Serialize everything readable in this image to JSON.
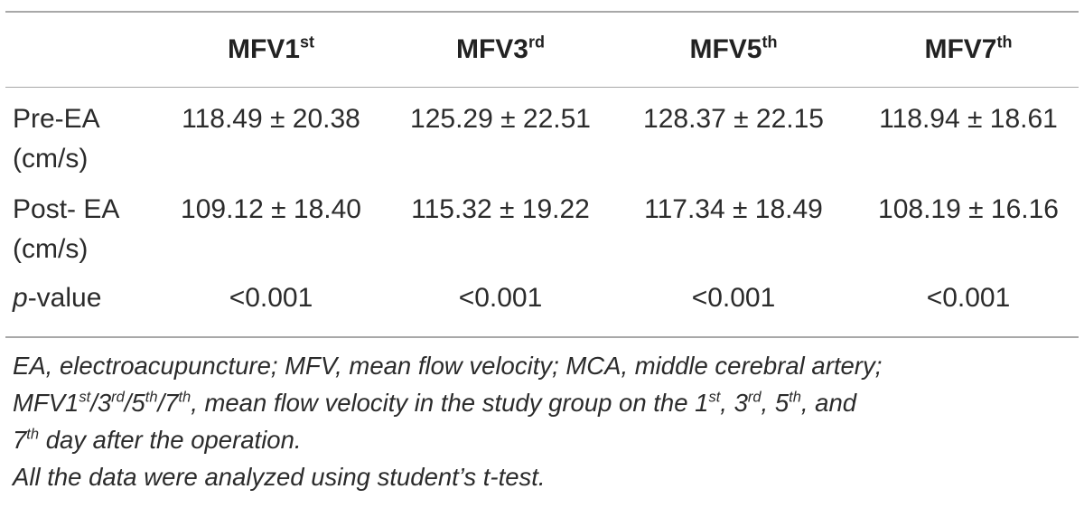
{
  "table": {
    "headers": [
      {
        "base": "MFV1",
        "sup": "st"
      },
      {
        "base": "MFV3",
        "sup": "rd"
      },
      {
        "base": "MFV5",
        "sup": "th"
      },
      {
        "base": "MFV7",
        "sup": "th"
      }
    ],
    "rows": [
      {
        "label_line1": "Pre-EA",
        "label_line2": "(cm/s)",
        "values": [
          "118.49 ± 20.38",
          "125.29 ± 22.51",
          "128.37 ± 22.15",
          "118.94 ± 18.61"
        ]
      },
      {
        "label_line1": "Post- EA",
        "label_line2": "(cm/s)",
        "values": [
          "109.12 ± 18.40",
          "115.32 ± 19.22",
          "117.34 ± 18.49",
          "108.19 ± 16.16"
        ]
      },
      {
        "label_italic": "p",
        "label_rest": "-value",
        "values": [
          "<0.001",
          "<0.001",
          "<0.001",
          "<0.001"
        ]
      }
    ]
  },
  "footnote": {
    "line1": "EA, electroacupuncture; MFV, mean flow velocity; MCA, middle cerebral artery;",
    "line2_a": "MFV1",
    "line2_sup1": "st",
    "line2_b": "/3",
    "line2_sup2": "rd",
    "line2_c": "/5",
    "line2_sup3": "th",
    "line2_d": "/7",
    "line2_sup4": "th",
    "line2_e": ", mean flow velocity in the study group on the 1",
    "line2_sup5": "st",
    "line2_f": ", 3",
    "line2_sup6": "rd",
    "line2_g": ", 5",
    "line2_sup7": "th",
    "line2_h": ", and",
    "line3_a": "7",
    "line3_sup": "th",
    "line3_b": " day after the operation.",
    "line4": "All the data were analyzed using student’s t-test."
  }
}
